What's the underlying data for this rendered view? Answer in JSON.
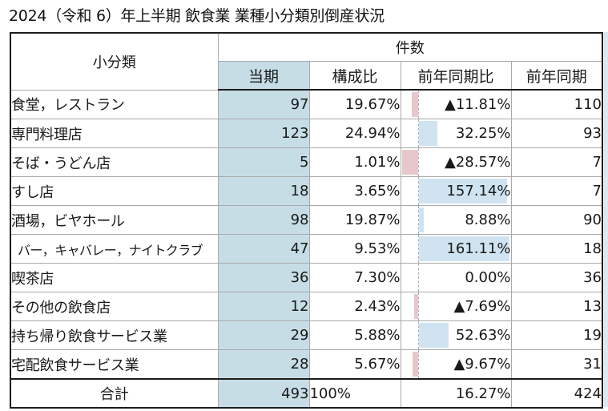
{
  "title": "2024（令和 6）年上半期  飲食業 業種小分類別倒産状況",
  "table": {
    "header": {
      "category": "小分類",
      "group": "件数",
      "columns": [
        "当期",
        "構成比",
        "前年同期比",
        "前年同期"
      ]
    },
    "rows": [
      {
        "name": "食堂，レストラン",
        "current": "97",
        "composition": "19.67%",
        "yoy": "▲11.81%",
        "yoy_value": -11.81,
        "previous": "110"
      },
      {
        "name": "専門料理店",
        "current": "123",
        "composition": "24.94%",
        "yoy": "32.25%",
        "yoy_value": 32.25,
        "previous": "93"
      },
      {
        "name": "そば・うどん店",
        "current": "5",
        "composition": "1.01%",
        "yoy": "▲28.57%",
        "yoy_value": -28.57,
        "previous": "7"
      },
      {
        "name": "すし店",
        "current": "18",
        "composition": "3.65%",
        "yoy": "157.14%",
        "yoy_value": 157.14,
        "previous": "7"
      },
      {
        "name": "酒場，ビヤホール",
        "current": "98",
        "composition": "19.87%",
        "yoy": "8.88%",
        "yoy_value": 8.88,
        "previous": "90"
      },
      {
        "name": "バー，キャバレー，ナイトクラブ",
        "current": "47",
        "composition": "9.53%",
        "yoy": "161.11%",
        "yoy_value": 161.11,
        "previous": "18"
      },
      {
        "name": "喫茶店",
        "current": "36",
        "composition": "7.30%",
        "yoy": "0.00%",
        "yoy_value": 0.0,
        "previous": "36"
      },
      {
        "name": "その他の飲食店",
        "current": "12",
        "composition": "2.43%",
        "yoy": "▲7.69%",
        "yoy_value": -7.69,
        "previous": "13"
      },
      {
        "name": "持ち帰り飲食サービス業",
        "current": "29",
        "composition": "5.88%",
        "yoy": "52.63%",
        "yoy_value": 52.63,
        "previous": "19"
      },
      {
        "name": "宅配飲食サービス業",
        "current": "28",
        "composition": "5.67%",
        "yoy": "▲9.67%",
        "yoy_value": -9.67,
        "previous": "31"
      }
    ],
    "total": {
      "label": "合計",
      "current": "493",
      "composition": "100%",
      "yoy": "16.27%",
      "previous": "424"
    }
  },
  "colors": {
    "current_column_bg": "#c6dde6",
    "positive_bar": "#cfe4f0",
    "negative_bar": "#e8c7cb",
    "border_dark": "#1c1c1c",
    "border_light": "#a9a9a9"
  }
}
